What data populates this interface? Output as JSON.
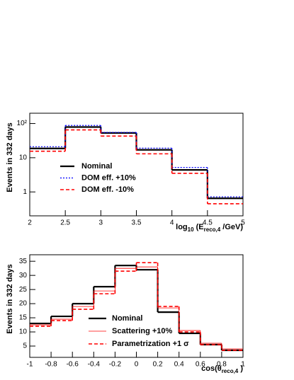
{
  "chart_data": [
    {
      "type": "histogram",
      "log_y": true,
      "y_label": "Events in 332 days",
      "x_label": [
        "log",
        "10",
        " (E",
        "reco,4",
        " /GeV)"
      ],
      "bins": [
        2,
        2.5,
        3,
        3.5,
        4,
        4.5,
        5
      ],
      "xlim": [
        2,
        5
      ],
      "xticks": [
        2,
        2.5,
        3,
        3.5,
        4,
        4.5,
        5
      ],
      "ylim": [
        0.2,
        200
      ],
      "yticks": [
        1,
        10,
        {
          "value": 100,
          "label": "10²"
        }
      ],
      "series": [
        {
          "name": "Nominal",
          "color": "#000000",
          "style": "solid",
          "values": [
            18.7,
            79,
            53,
            17,
            4.4,
            0.65
          ]
        },
        {
          "name": "DOM eff. +10%",
          "color": "#0000ff",
          "style": "dotted",
          "values": [
            21,
            88,
            55,
            19,
            5.2,
            0.72
          ]
        },
        {
          "name": "DOM eff. -10%",
          "color": "#ff0000",
          "style": "dashed",
          "values": [
            15.5,
            65,
            43,
            13,
            3.5,
            0.45
          ]
        }
      ]
    },
    {
      "type": "histogram",
      "log_y": false,
      "y_label": "Events in 332 days",
      "x_label": [
        "cos(θ",
        "reco,4",
        " )"
      ],
      "bins": [
        -1,
        -0.8,
        -0.6,
        -0.4,
        -0.2,
        0,
        0.2,
        0.4,
        0.6,
        0.8,
        1
      ],
      "xlim": [
        -1,
        1
      ],
      "xticks": [
        -1,
        -0.8,
        -0.6,
        -0.4,
        -0.2,
        0,
        0.2,
        0.4,
        0.6,
        0.8,
        1
      ],
      "ylim": [
        1,
        37.3
      ],
      "yticks": [
        5,
        10,
        15,
        20,
        25,
        30,
        35
      ],
      "series": [
        {
          "name": "Nominal",
          "color": "#000000",
          "style": "solid",
          "values": [
            13,
            15.5,
            20,
            26,
            33.5,
            32,
            17,
            9.5,
            5.5,
            3.5
          ]
        },
        {
          "name": "Scattering +10%",
          "color": "#ff0000",
          "style": "thin",
          "values": [
            12.5,
            14.5,
            19,
            24.5,
            32.5,
            33,
            18.5,
            10.5,
            6,
            4
          ]
        },
        {
          "name": "Parametrization +1 σ",
          "color": "#ff0000",
          "style": "dashed",
          "values": [
            12,
            14,
            18,
            23.5,
            31.5,
            34.5,
            19,
            10,
            5.5,
            3.5
          ]
        }
      ]
    }
  ]
}
